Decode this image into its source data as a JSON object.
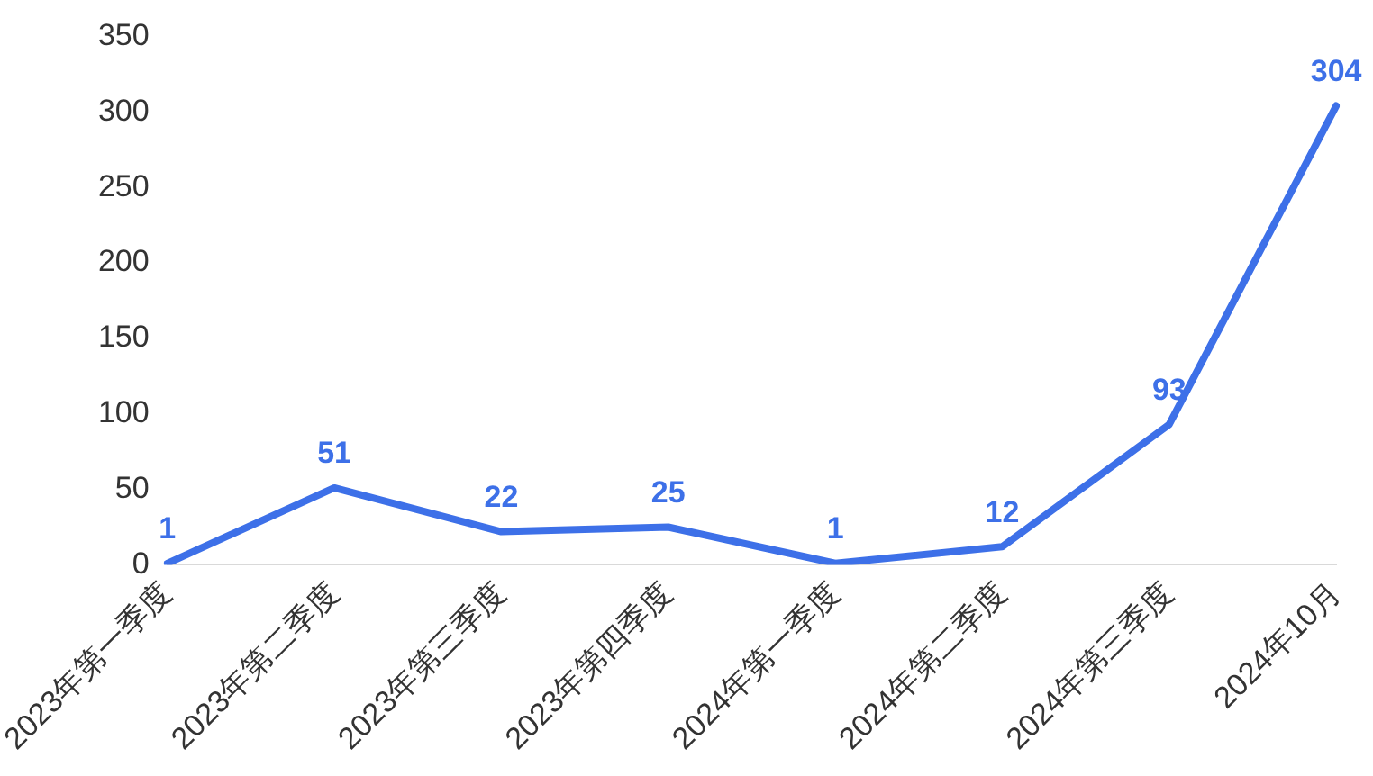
{
  "chart_data": {
    "type": "line",
    "categories": [
      "2023年第一季度",
      "2023年第二季度",
      "2023年第三季度",
      "2023年第四季度",
      "2024年第一季度",
      "2024年第二季度",
      "2024年第三季度",
      "2024年10月"
    ],
    "series": [
      {
        "color": "#3d70e8",
        "values": [
          1,
          51,
          22,
          25,
          1,
          12,
          93,
          304
        ]
      }
    ],
    "ylim": [
      0,
      350
    ],
    "yticks": [
      0,
      50,
      100,
      150,
      200,
      250,
      300,
      350
    ],
    "grid": false,
    "legend": false,
    "marker": "none",
    "line_style": "solid",
    "data_labels": true
  }
}
